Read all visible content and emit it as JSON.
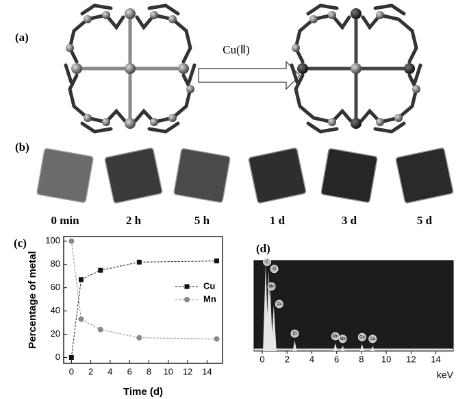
{
  "panels": {
    "a": "(a)",
    "b": "(b)"
  },
  "reaction_label": "Cu(Ⅱ)",
  "crystal_times": [
    "0 min",
    "2 h",
    "5 h",
    "1 d",
    "3 d",
    "5 d"
  ],
  "chart_data": [
    {
      "type": "line",
      "panel_label": "(c)",
      "xlabel": "Time (d)",
      "ylabel": "Percentage of metal",
      "x": [
        0,
        1,
        3,
        7,
        15
      ],
      "series": [
        {
          "name": "Cu",
          "color": "#111111",
          "marker": "square",
          "values": [
            0,
            67,
            75,
            82,
            83
          ]
        },
        {
          "name": "Mn",
          "color": "#888888",
          "marker": "circle",
          "values": [
            100,
            33,
            24,
            17,
            16
          ]
        }
      ],
      "xlim": [
        -0.8,
        15.6
      ],
      "xticks": [
        0,
        2,
        4,
        6,
        8,
        10,
        12,
        14
      ],
      "ylim": [
        -5,
        104
      ],
      "yticks": [
        0,
        20,
        40,
        60,
        80,
        100
      ],
      "legend": "right"
    },
    {
      "type": "spectrum",
      "panel_label": "(d)",
      "xlabel": "keV",
      "xlim": [
        -0.66,
        15.4
      ],
      "xticks": [
        0,
        2,
        4,
        6,
        8,
        10,
        12,
        14
      ],
      "ylim": [
        0,
        100
      ],
      "background": "#1c1c1c",
      "color": "#e6e6e6",
      "peaks": {
        "x": [
          0.28,
          0.53,
          0.64,
          0.93,
          2.62,
          5.9,
          6.49,
          8.05,
          8.9
        ],
        "values": [
          100,
          92,
          72,
          52,
          12,
          9,
          6,
          8,
          6
        ],
        "labels": [
          "C",
          "O",
          "Mn",
          "Cu",
          "Cl",
          "Mn",
          "Mn",
          "Cu",
          "Cu"
        ]
      }
    }
  ]
}
